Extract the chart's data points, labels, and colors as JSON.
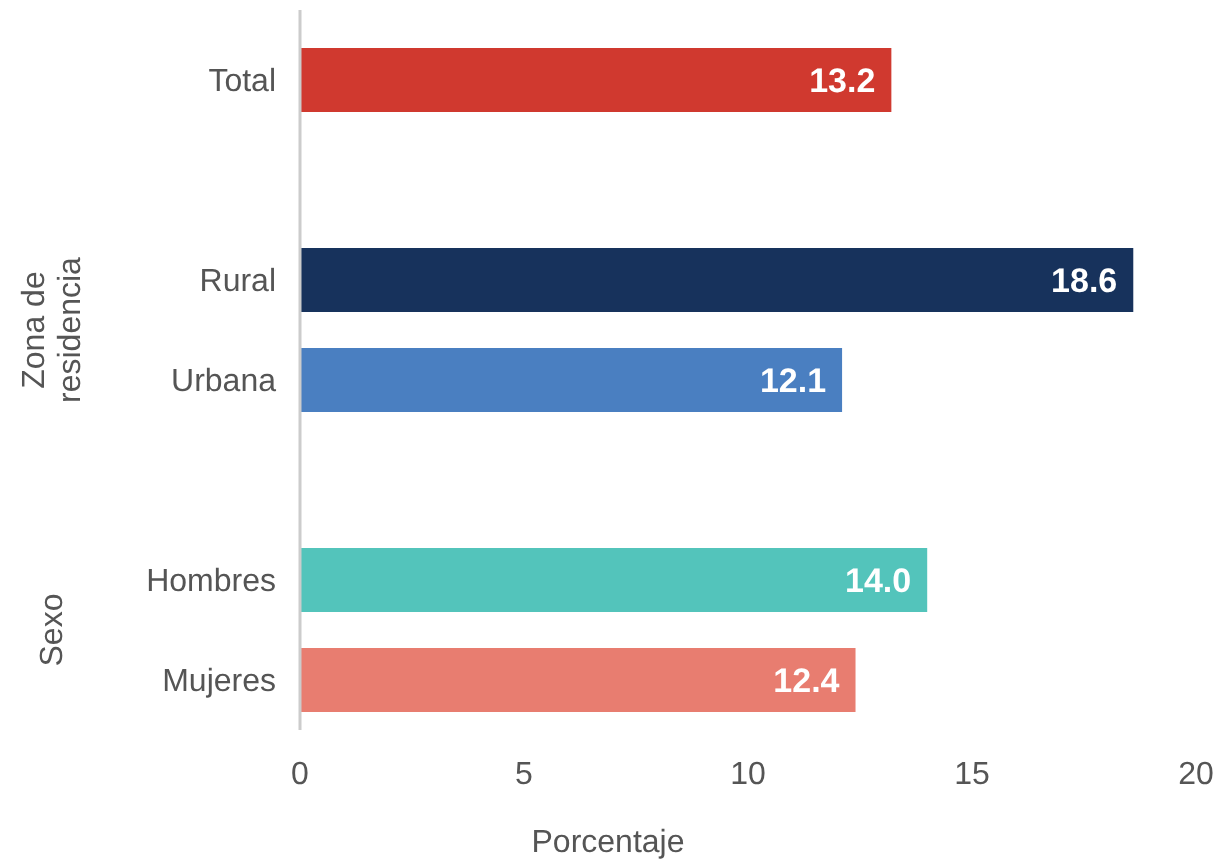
{
  "chart_data": {
    "type": "bar",
    "orientation": "horizontal",
    "categories": [
      "Total",
      null,
      "Rural",
      "Urbana",
      null,
      "Hombres",
      "Mujeres"
    ],
    "values": [
      13.2,
      null,
      18.6,
      12.1,
      null,
      14.0,
      12.4
    ],
    "colors": [
      "#d0392f",
      null,
      "#17325c",
      "#4a7fc1",
      null,
      "#53c4bb",
      "#e87d70"
    ],
    "value_labels": [
      "13.2",
      null,
      "18.6",
      "12.1",
      null,
      "14.0",
      "12.4"
    ],
    "xlim": [
      0,
      20
    ],
    "xticks": [
      0,
      5,
      10,
      15,
      20
    ],
    "xlabel": "Porcentaje",
    "grid": false,
    "annotations": [
      "Zona de residencia",
      "Sexo"
    ]
  }
}
